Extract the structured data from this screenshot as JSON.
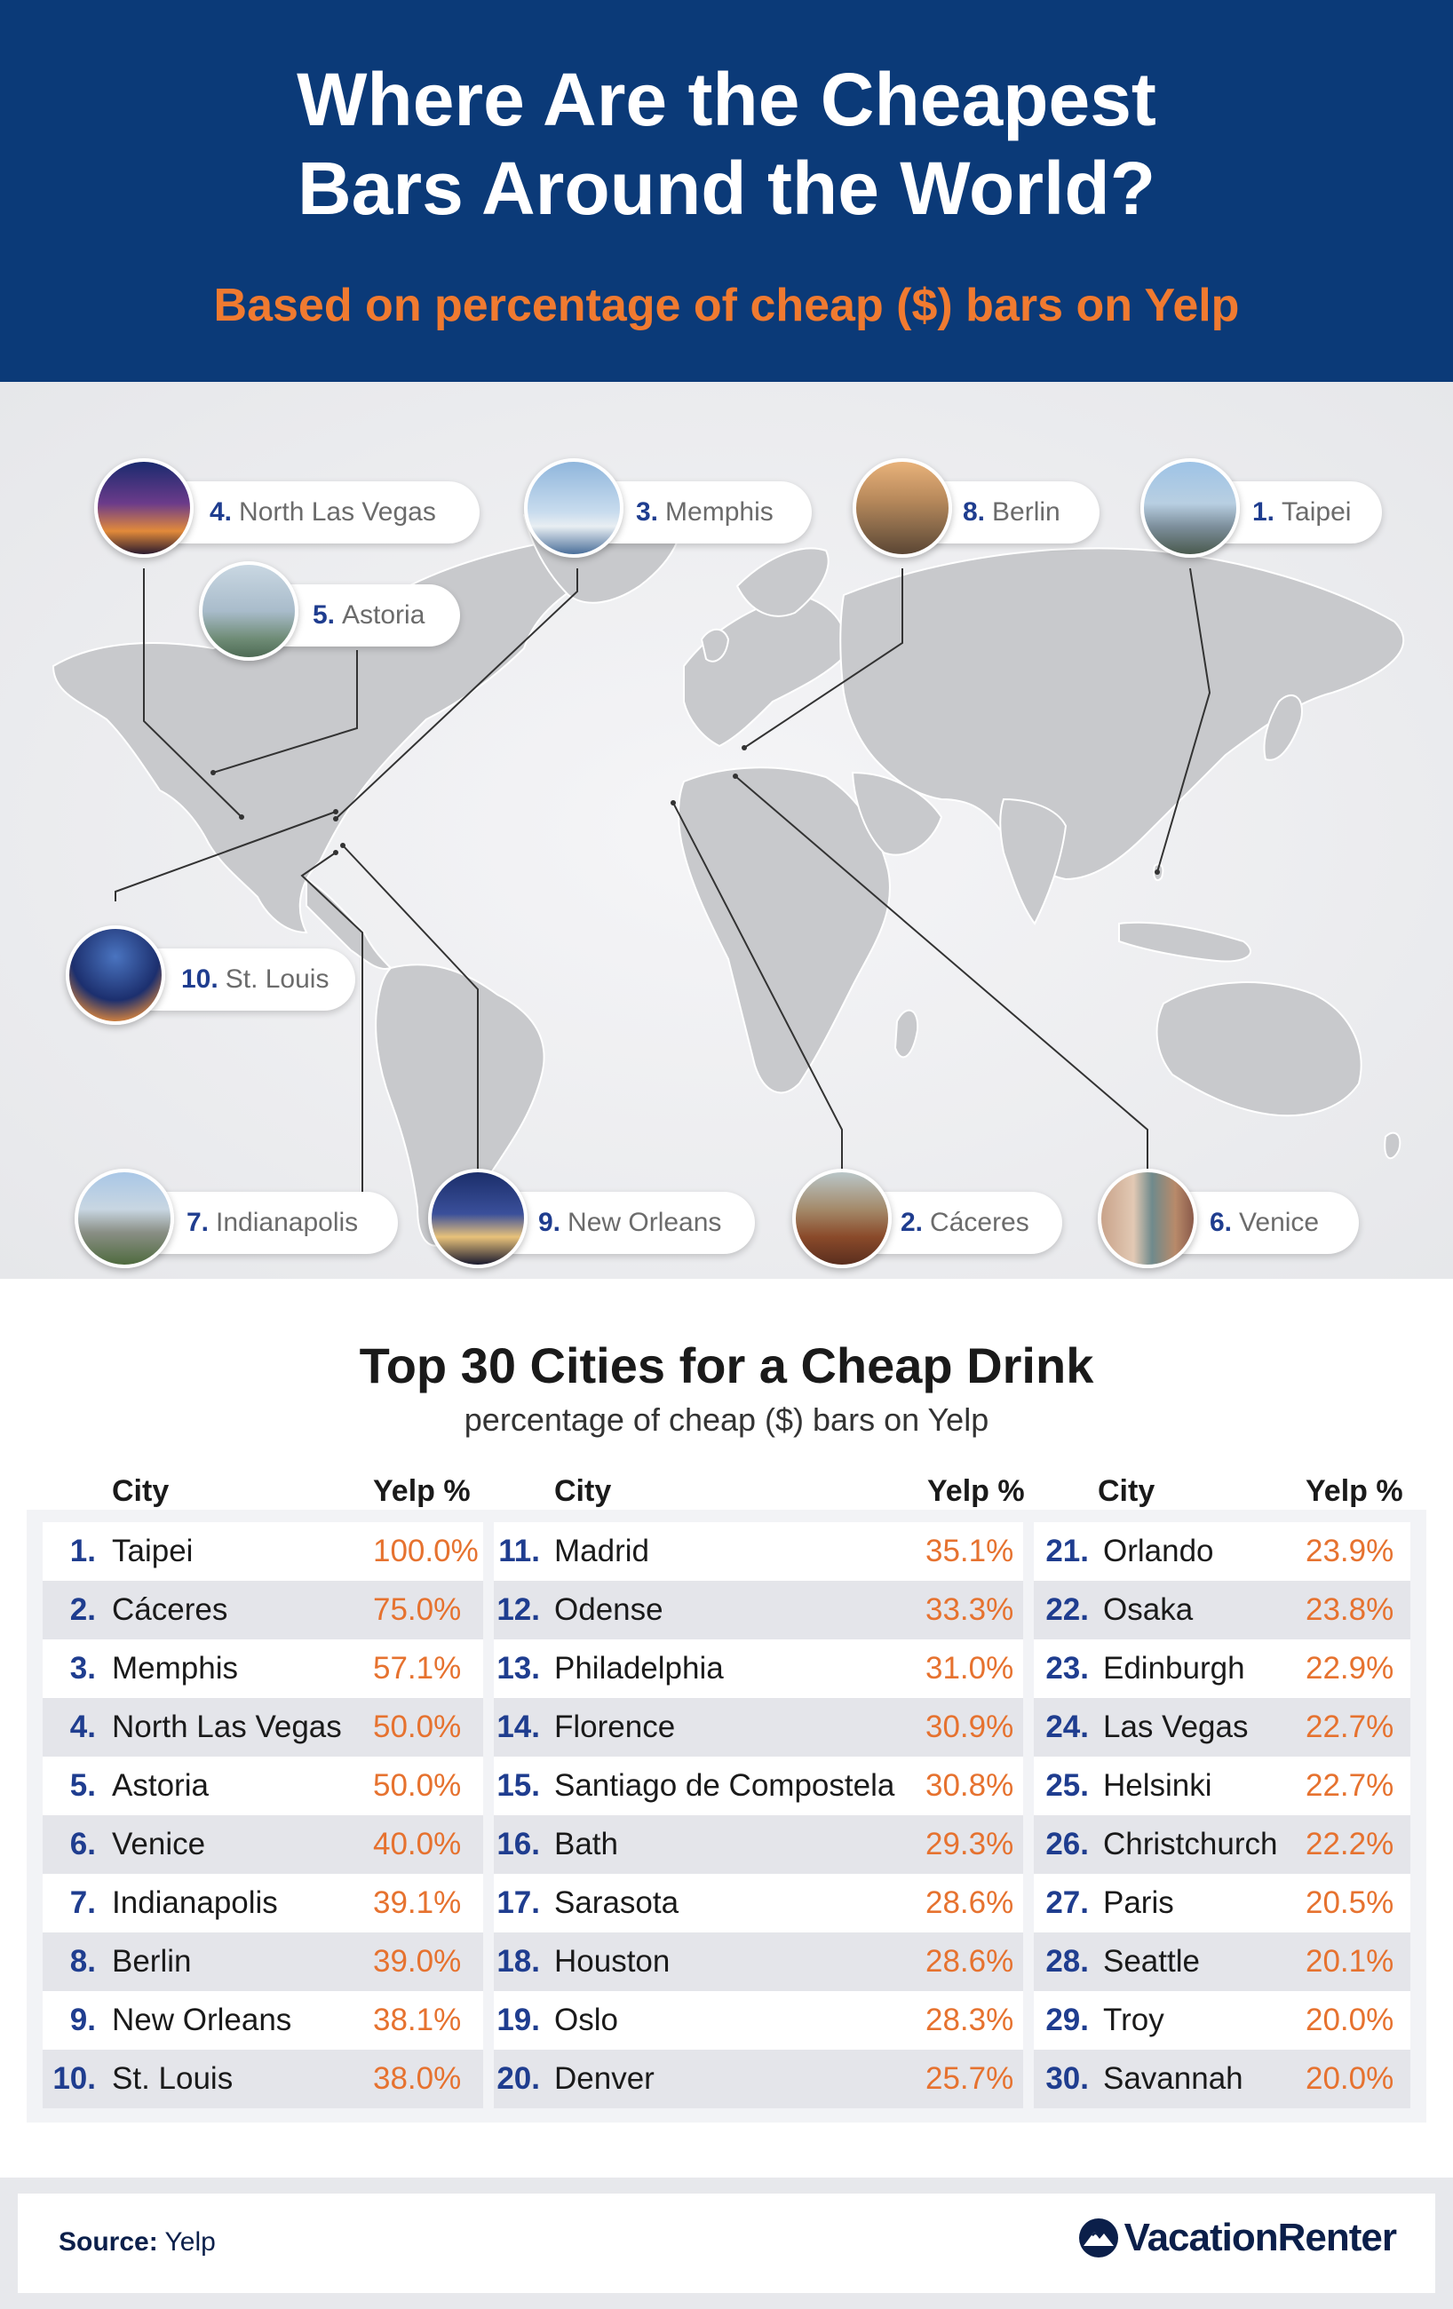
{
  "header": {
    "title_line1": "Where Are the Cheapest",
    "title_line2": "Bars Around the World?",
    "subtitle": "Based on percentage of cheap ($) bars on Yelp"
  },
  "map": {
    "pins": [
      {
        "rank": "4.",
        "city": "North Las Vegas",
        "photo": "city-night-skyline"
      },
      {
        "rank": "5.",
        "city": "Astoria",
        "photo": "bridge-river"
      },
      {
        "rank": "3.",
        "city": "Memphis",
        "photo": "riverfront-skyline"
      },
      {
        "rank": "8.",
        "city": "Berlin",
        "photo": "city-aerial"
      },
      {
        "rank": "1.",
        "city": "Taipei",
        "photo": "skyscraper-skyline"
      },
      {
        "rank": "10.",
        "city": "St. Louis",
        "photo": "gateway-arch"
      },
      {
        "rank": "7.",
        "city": "Indianapolis",
        "photo": "downtown-skyline"
      },
      {
        "rank": "9.",
        "city": "New Orleans",
        "photo": "night-skyline"
      },
      {
        "rank": "2.",
        "city": "Cáceres",
        "photo": "old-town-rooftops"
      },
      {
        "rank": "6.",
        "city": "Venice",
        "photo": "canal"
      }
    ]
  },
  "table": {
    "title": "Top 30 Cities for a Cheap Drink",
    "subtitle": "percentage of cheap ($) bars on Yelp",
    "col_city": "City",
    "col_pct": "Yelp %",
    "columns": [
      [
        {
          "rank": "1.",
          "city": "Taipei",
          "pct": "100.0%"
        },
        {
          "rank": "2.",
          "city": "Cáceres",
          "pct": "75.0%"
        },
        {
          "rank": "3.",
          "city": "Memphis",
          "pct": "57.1%"
        },
        {
          "rank": "4.",
          "city": "North Las Vegas",
          "pct": "50.0%"
        },
        {
          "rank": "5.",
          "city": "Astoria",
          "pct": "50.0%"
        },
        {
          "rank": "6.",
          "city": "Venice",
          "pct": "40.0%"
        },
        {
          "rank": "7.",
          "city": "Indianapolis",
          "pct": "39.1%"
        },
        {
          "rank": "8.",
          "city": "Berlin",
          "pct": "39.0%"
        },
        {
          "rank": "9.",
          "city": "New Orleans",
          "pct": "38.1%"
        },
        {
          "rank": "10.",
          "city": "St. Louis",
          "pct": "38.0%"
        }
      ],
      [
        {
          "rank": "11.",
          "city": "Madrid",
          "pct": "35.1%"
        },
        {
          "rank": "12.",
          "city": "Odense",
          "pct": "33.3%"
        },
        {
          "rank": "13.",
          "city": "Philadelphia",
          "pct": "31.0%"
        },
        {
          "rank": "14.",
          "city": "Florence",
          "pct": "30.9%"
        },
        {
          "rank": "15.",
          "city": "Santiago de Compostela",
          "pct": "30.8%"
        },
        {
          "rank": "16.",
          "city": "Bath",
          "pct": "29.3%"
        },
        {
          "rank": "17.",
          "city": "Sarasota",
          "pct": "28.6%"
        },
        {
          "rank": "18.",
          "city": "Houston",
          "pct": "28.6%"
        },
        {
          "rank": "19.",
          "city": "Oslo",
          "pct": "28.3%"
        },
        {
          "rank": "20.",
          "city": "Denver",
          "pct": "25.7%"
        }
      ],
      [
        {
          "rank": "21.",
          "city": "Orlando",
          "pct": "23.9%"
        },
        {
          "rank": "22.",
          "city": "Osaka",
          "pct": "23.8%"
        },
        {
          "rank": "23.",
          "city": "Edinburgh",
          "pct": "22.9%"
        },
        {
          "rank": "24.",
          "city": "Las Vegas",
          "pct": "22.7%"
        },
        {
          "rank": "25.",
          "city": "Helsinki",
          "pct": "22.7%"
        },
        {
          "rank": "26.",
          "city": "Christchurch",
          "pct": "22.2%"
        },
        {
          "rank": "27.",
          "city": "Paris",
          "pct": "20.5%"
        },
        {
          "rank": "28.",
          "city": "Seattle",
          "pct": "20.1%"
        },
        {
          "rank": "29.",
          "city": "Troy",
          "pct": "20.0%"
        },
        {
          "rank": "30.",
          "city": "Savannah",
          "pct": "20.0%"
        }
      ]
    ]
  },
  "footer": {
    "source_label": "Source:",
    "source_value": "Yelp",
    "brand": "VacationRenter",
    "brand_icon": "mountain-logo-icon"
  },
  "colors": {
    "header_bg": "#0b3a78",
    "subtitle": "#f07a30",
    "rank": "#1f3d8f",
    "percent": "#e6722f",
    "land": "#c8c9cc"
  }
}
